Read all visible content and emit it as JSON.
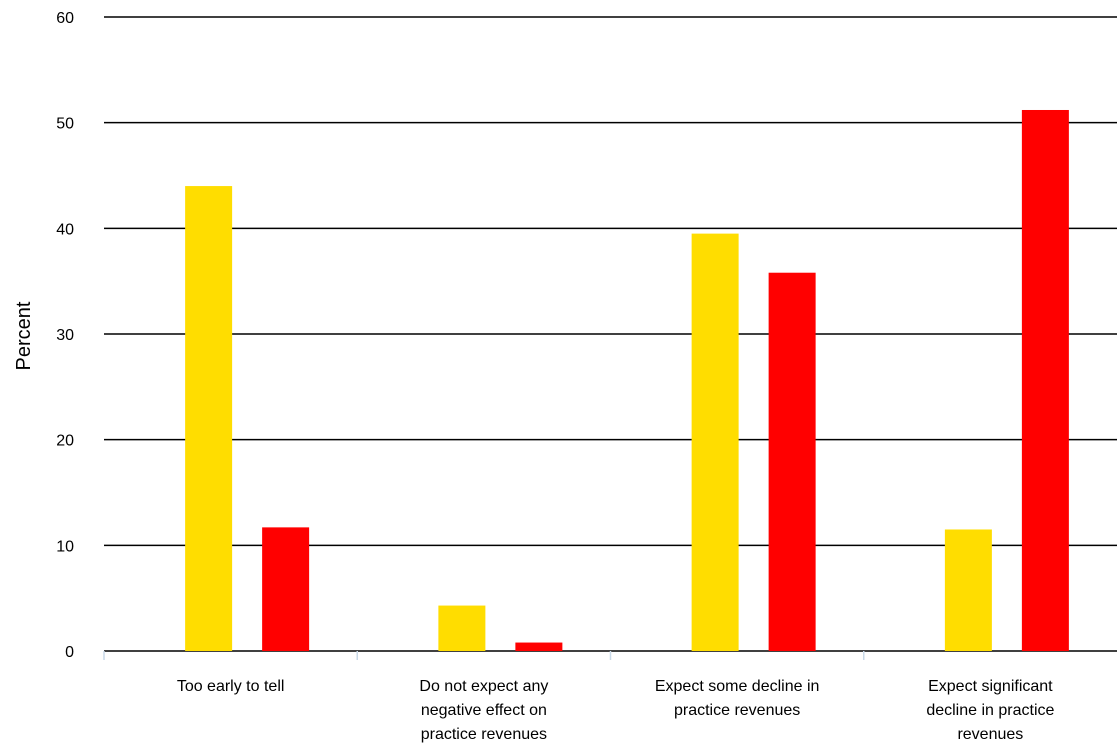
{
  "chart_data": {
    "type": "bar",
    "title": "",
    "xlabel": "",
    "ylabel": "Percent",
    "ylim": [
      0,
      60
    ],
    "yticks": [
      0,
      10,
      20,
      30,
      40,
      50,
      60
    ],
    "grid": true,
    "legend": "none",
    "categories": [
      [
        "Too early to tell"
      ],
      [
        "Do not expect any",
        "negative effect on",
        "practice revenues"
      ],
      [
        "Expect some decline in",
        "practice revenues"
      ],
      [
        "Expect significant",
        "decline in practice",
        "revenues"
      ]
    ],
    "series": [
      {
        "color": "#FFDD00",
        "values": [
          44,
          4.3,
          39.5,
          11.5
        ]
      },
      {
        "color": "#FF0000",
        "values": [
          11.7,
          0.8,
          35.8,
          51.2
        ]
      }
    ]
  }
}
